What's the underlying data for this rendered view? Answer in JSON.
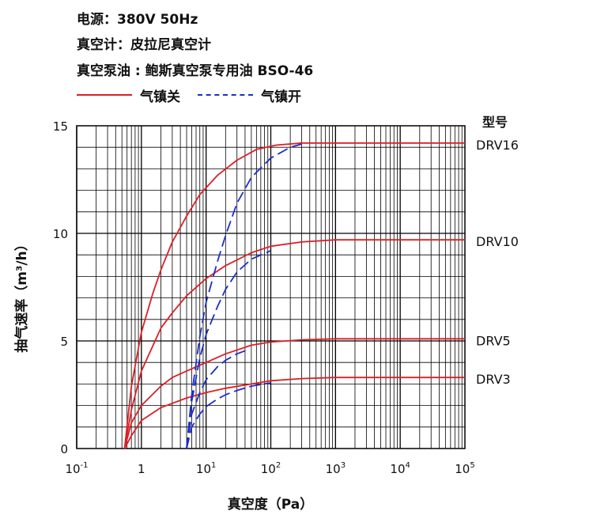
{
  "specs": [
    {
      "label": "电源",
      "sep": "：",
      "value": "380V 50Hz"
    },
    {
      "label": "真空计",
      "sep": "：",
      "value": "皮拉尼真空计"
    },
    {
      "label": "真空泵油",
      "sep": " : ",
      "value": "鲍斯真空泵专用油 BSO-46"
    }
  ],
  "legend": {
    "closed": {
      "label": "气镇关",
      "color": "#dd1f26"
    },
    "open": {
      "label": "气镇开",
      "color": "#1b2fc7"
    }
  },
  "chart_data": {
    "type": "line",
    "xlabel": "真空度（Pa）",
    "ylabel": "抽气速率（m³/h）",
    "x_scale": "log",
    "xlim": [
      0.1,
      100000
    ],
    "ylim": [
      0,
      15
    ],
    "x_ticks": [
      {
        "value": 0.1,
        "base": "10",
        "exp": "-1"
      },
      {
        "value": 1,
        "base": "1",
        "exp": ""
      },
      {
        "value": 10,
        "base": "10",
        "exp": "1"
      },
      {
        "value": 100,
        "base": "10",
        "exp": "2"
      },
      {
        "value": 1000,
        "base": "10",
        "exp": "3"
      },
      {
        "value": 10000,
        "base": "10",
        "exp": "4"
      },
      {
        "value": 100000,
        "base": "10",
        "exp": "5"
      }
    ],
    "y_ticks": [
      0,
      5,
      10,
      15
    ],
    "model_header": "型号",
    "grid": true,
    "series": [
      {
        "name": "DRV16",
        "ballast": "closed",
        "x": [
          0.55,
          0.7,
          1,
          1.5,
          2,
          3,
          5,
          8,
          15,
          30,
          60,
          120,
          300,
          1000,
          10000,
          100000
        ],
        "y": [
          0,
          2.9,
          5.4,
          7.2,
          8.3,
          9.6,
          10.8,
          11.8,
          12.7,
          13.4,
          13.9,
          14.1,
          14.2,
          14.2,
          14.2,
          14.2
        ]
      },
      {
        "name": "DRV10",
        "ballast": "closed",
        "x": [
          0.55,
          0.7,
          1,
          2,
          3,
          5,
          10,
          20,
          50,
          100,
          300,
          1000,
          10000,
          100000
        ],
        "y": [
          0,
          1.8,
          3.6,
          5.6,
          6.3,
          7.1,
          7.9,
          8.5,
          9.1,
          9.4,
          9.6,
          9.7,
          9.7,
          9.7
        ]
      },
      {
        "name": "DRV5",
        "ballast": "closed",
        "x": [
          0.55,
          0.7,
          1,
          2,
          3,
          5,
          10,
          20,
          50,
          100,
          300,
          1000,
          10000,
          100000
        ],
        "y": [
          0,
          1.2,
          2.0,
          2.9,
          3.3,
          3.6,
          4.0,
          4.4,
          4.8,
          4.95,
          5.05,
          5.1,
          5.1,
          5.1
        ]
      },
      {
        "name": "DRV3",
        "ballast": "closed",
        "x": [
          0.55,
          0.7,
          1,
          2,
          3,
          5,
          10,
          20,
          50,
          100,
          300,
          1000,
          10000,
          100000
        ],
        "y": [
          0,
          0.6,
          1.3,
          1.9,
          2.1,
          2.35,
          2.6,
          2.8,
          3.0,
          3.15,
          3.25,
          3.3,
          3.3,
          3.3
        ]
      },
      {
        "name": "DRV16",
        "ballast": "open",
        "x": [
          5,
          6,
          8,
          10,
          15,
          20,
          30,
          50,
          100,
          200,
          300
        ],
        "y": [
          0,
          2.5,
          5.2,
          6.8,
          8.7,
          9.9,
          11.4,
          12.6,
          13.5,
          14.0,
          14.15
        ]
      },
      {
        "name": "DRV10",
        "ballast": "open",
        "x": [
          5,
          6,
          8,
          10,
          15,
          20,
          30,
          50,
          100
        ],
        "y": [
          0,
          2.2,
          4.2,
          5.3,
          6.6,
          7.4,
          8.2,
          8.8,
          9.2
        ]
      },
      {
        "name": "DRV5",
        "ballast": "open",
        "x": [
          5,
          6,
          8,
          10,
          15,
          20,
          30,
          45
        ],
        "y": [
          0,
          1.6,
          2.6,
          3.2,
          3.8,
          4.1,
          4.4,
          4.6
        ]
      },
      {
        "name": "DRV3",
        "ballast": "open",
        "x": [
          5,
          6,
          8,
          10,
          15,
          20,
          30,
          50,
          100
        ],
        "y": [
          0,
          1.0,
          1.6,
          1.95,
          2.3,
          2.5,
          2.7,
          2.9,
          3.05
        ]
      }
    ]
  }
}
